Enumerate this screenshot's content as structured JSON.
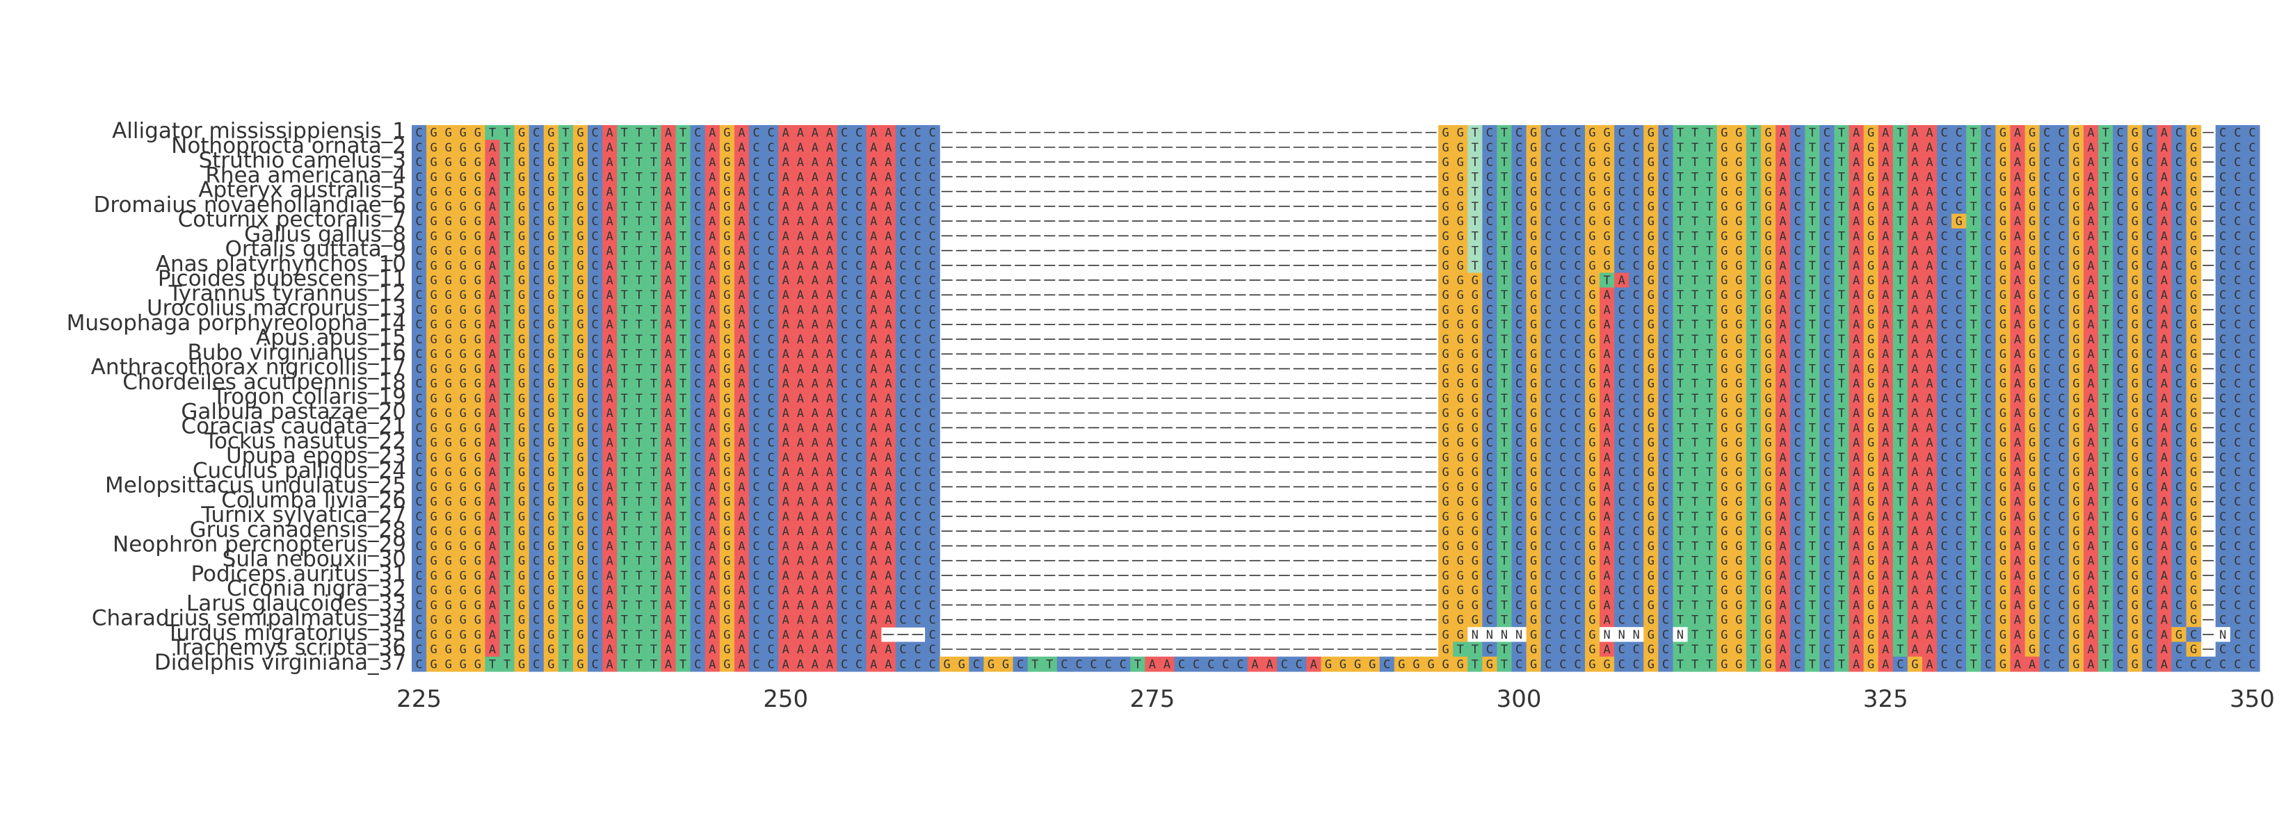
{
  "chart_data": {
    "type": "heatmap",
    "title": "",
    "xlabel": "",
    "ylabel": "",
    "x_range": [
      225,
      350
    ],
    "x_ticks": [
      225,
      250,
      275,
      300,
      325,
      350
    ],
    "grid": false,
    "legend": "none",
    "colors": {
      "A": "#f05d5e",
      "C": "#5b84c4",
      "G": "#f3b63a",
      "T": "#5cc38b",
      "N": "#ffffff",
      "-": "#ffffff",
      "light_C": "#9cb7e0",
      "light_T": "#a9dfc1"
    },
    "reference": "CGGGGATGCGTGCATTTATCAGACCAAAACCAACCC----------------------------------GGGCTCGCCCGGCCGCTTTGGTGACTCTAGATAACCTCGAGCCGATCGCACG-CCCC",
    "sequences": [
      {
        "name": "Alligator mississippiensis_1"
      },
      {
        "name": "Nothoprocta ornata_2"
      },
      {
        "name": "Struthio camelus_3"
      },
      {
        "name": "Rhea americana_4"
      },
      {
        "name": "Apteryx australis_5"
      },
      {
        "name": "Dromaius novaehollandiae_6"
      },
      {
        "name": "Coturnix pectoralis_7"
      },
      {
        "name": "Gallus gallus_8"
      },
      {
        "name": "Ortalis guttata_9"
      },
      {
        "name": "Anas platyrhynchos_10"
      },
      {
        "name": "Picoides pubescens_11"
      },
      {
        "name": "Tyrannus tyrannus_12"
      },
      {
        "name": "Urocolius macrourus_13"
      },
      {
        "name": "Musophaga porphyreolopha_14"
      },
      {
        "name": "Apus apus_15"
      },
      {
        "name": "Bubo virginianus_16"
      },
      {
        "name": "Anthracothorax nigricollis_17"
      },
      {
        "name": "Chordeiles acutipennis_18"
      },
      {
        "name": "Trogon collaris_19"
      },
      {
        "name": "Galbula pastazae_20"
      },
      {
        "name": "Coracias caudata_21"
      },
      {
        "name": "Tockus nasutus_22"
      },
      {
        "name": "Upupa epops_23"
      },
      {
        "name": "Cuculus pallidus_24"
      },
      {
        "name": "Melopsittacus undulatus_25"
      },
      {
        "name": "Columba livia_26"
      },
      {
        "name": "Turnix sylvatica_27"
      },
      {
        "name": "Grus canadensis_28"
      },
      {
        "name": "Neophron percnopterus_29"
      },
      {
        "name": "Sula nebouxii_30"
      },
      {
        "name": "Podiceps auritus_31"
      },
      {
        "name": "Ciconia nigra_32"
      },
      {
        "name": "Larus glaucoides_33"
      },
      {
        "name": "Charadrius semipalmatus_34"
      },
      {
        "name": "Turdus migratorius_35"
      },
      {
        "name": "Trachemys scripta_36"
      },
      {
        "name": "Didelphis virginiana_37"
      }
    ],
    "variants": {
      "Alligator mississippiensis_1": {
        "230": "T",
        "297": "T"
      },
      "Nothoprocta ornata_2": {
        "297": "T"
      },
      "Struthio camelus_3": {
        "297": "T"
      },
      "Rhea americana_4": {
        "297": "T"
      },
      "Apteryx australis_5": {
        "297": "T"
      },
      "Dromaius novaehollandiae_6": {
        "297": "T"
      },
      "Coturnix pectoralis_7": {
        "297": "T",
        "330": "G"
      },
      "Gallus gallus_8": {
        "297": "T"
      },
      "Ortalis guttata_9": {
        "297": "T"
      },
      "Anas platyrhynchos_10": {
        "297": "T"
      },
      "Picoides pubescens_11": {
        "306": "T",
        "307": "A"
      },
      "Tyrannus tyrannus_12": {
        "306": "A"
      },
      "Urocolius macrourus_13": {
        "306": "A"
      },
      "Musophaga porphyreolopha_14": {
        "306": "A"
      },
      "Apus apus_15": {
        "306": "A"
      },
      "Bubo virginianus_16": {
        "306": "A"
      },
      "Anthracothorax nigricollis_17": {
        "306": "A"
      },
      "Chordeiles acutipennis_18": {
        "306": "A"
      },
      "Trogon collaris_19": {
        "306": "A"
      },
      "Galbula pastazae_20": {
        "306": "A"
      },
      "Coracias caudata_21": {
        "306": "A"
      },
      "Tockus nasutus_22": {
        "306": "A"
      },
      "Upupa epops_23": {
        "306": "A"
      },
      "Cuculus pallidus_24": {
        "306": "A"
      },
      "Melopsittacus undulatus_25": {
        "306": "A"
      },
      "Columba livia_26": {
        "306": "A"
      },
      "Turnix sylvatica_27": {
        "306": "A"
      },
      "Grus canadensis_28": {
        "306": "A"
      },
      "Neophron percnopterus_29": {
        "306": "A"
      },
      "Sula nebouxii_30": {
        "306": "A"
      },
      "Podiceps auritus_31": {
        "306": "A"
      },
      "Ciconia nigra_32": {
        "306": "A"
      },
      "Larus glaucoides_33": {
        "306": "A"
      },
      "Charadrius semipalmatus_34": {
        "306": "A"
      },
      "Turdus migratorius_35": {
        "257": "-",
        "258": "-",
        "259": "-",
        "297": "N",
        "298": "N",
        "299": "N",
        "300": "N",
        "306": "N",
        "307": "N",
        "308": "N",
        "311": "N",
        "345": "G",
        "346": "C",
        "347": "-",
        "348": "N"
      },
      "Trachemys scripta_36": {
        "296": "T",
        "297": "T",
        "306": "A"
      },
      "Didelphis virginiana_37": {
        "230": "T",
        "261": "G",
        "262": "G",
        "263": "C",
        "264": "G",
        "265": "G",
        "266": "C",
        "267": "T",
        "268": "T",
        "269": "C",
        "270": "C",
        "271": "C",
        "272": "C",
        "273": "C",
        "274": "T",
        "275": "A",
        "276": "A",
        "277": "C",
        "278": "C",
        "279": "C",
        "280": "C",
        "281": "C",
        "282": "A",
        "283": "A",
        "284": "C",
        "285": "C",
        "286": "A",
        "287": "G",
        "288": "G",
        "289": "G",
        "290": "G",
        "291": "C",
        "292": "G",
        "293": "G",
        "294": "G",
        "295": "G",
        "296": "G",
        "297": "T",
        "298": "G",
        "306": "G",
        "307": "C",
        "326": "C",
        "327": "G",
        "335": "A",
        "346": "C",
        "347": "C"
      }
    }
  }
}
